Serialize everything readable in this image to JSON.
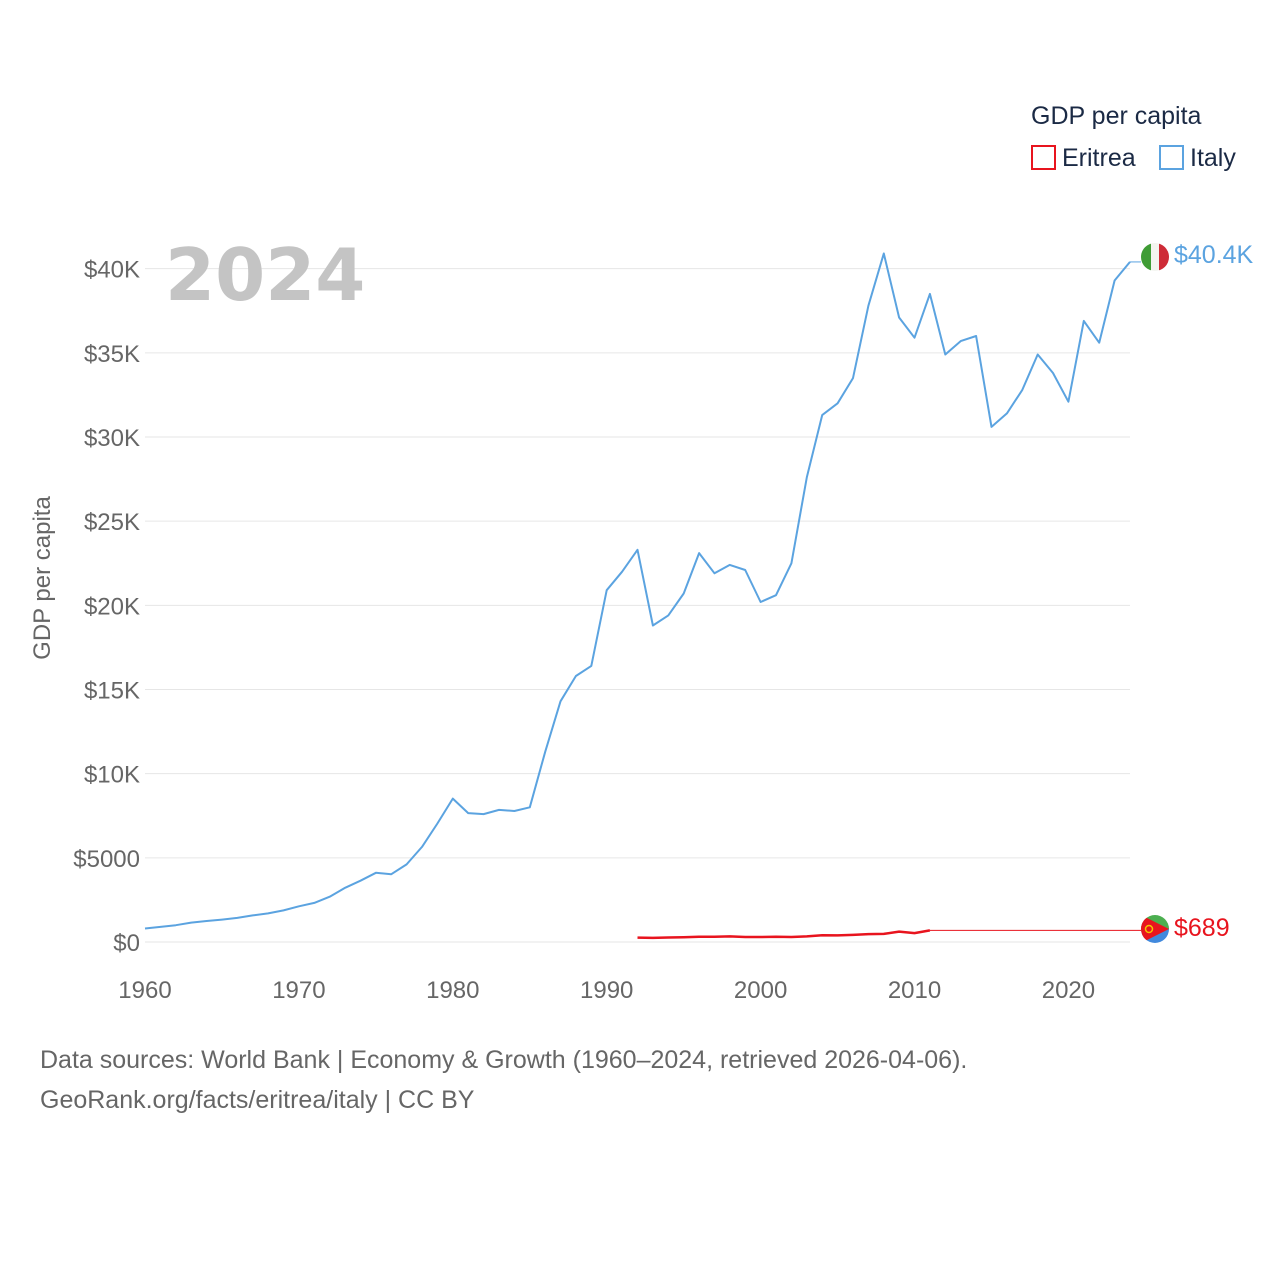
{
  "chart_data": {
    "type": "line",
    "title": "GDP per capita",
    "ylabel": "GDP per capita",
    "xlabel": "",
    "year_label": "2024",
    "xlim": [
      1960,
      2024
    ],
    "ylim": [
      0,
      42000
    ],
    "x_ticks": [
      1960,
      1970,
      1980,
      1990,
      2000,
      2010,
      2020
    ],
    "x_tick_labels": [
      "1960",
      "1970",
      "1980",
      "1990",
      "2000",
      "2010",
      "2020"
    ],
    "y_ticks": [
      0,
      5000,
      10000,
      15000,
      20000,
      25000,
      30000,
      35000,
      40000
    ],
    "y_tick_labels": [
      "$0",
      "$5000",
      "$10K",
      "$15K",
      "$20K",
      "$25K",
      "$30K",
      "$35K",
      "$40K"
    ],
    "grid": true,
    "legend": {
      "title": "GDP per capita",
      "position": "top-right"
    },
    "series": [
      {
        "name": "Eritrea",
        "color": "#e8141e",
        "end_label": "$689",
        "x": [
          1992,
          1993,
          1994,
          1995,
          1996,
          1997,
          1998,
          1999,
          2000,
          2001,
          2002,
          2003,
          2004,
          2005,
          2006,
          2007,
          2008,
          2009,
          2010,
          2011
        ],
        "values": [
          260,
          245,
          270,
          280,
          310,
          310,
          330,
          300,
          300,
          310,
          295,
          330,
          400,
          390,
          420,
          470,
          480,
          620,
          530,
          689
        ]
      },
      {
        "name": "Italy",
        "color": "#5ba3e0",
        "end_label": "$40.4K",
        "x": [
          1960,
          1961,
          1962,
          1963,
          1964,
          1965,
          1966,
          1967,
          1968,
          1969,
          1970,
          1971,
          1972,
          1973,
          1974,
          1975,
          1976,
          1977,
          1978,
          1979,
          1980,
          1981,
          1982,
          1983,
          1984,
          1985,
          1986,
          1987,
          1988,
          1989,
          1990,
          1991,
          1992,
          1993,
          1994,
          1995,
          1996,
          1997,
          1998,
          1999,
          2000,
          2001,
          2002,
          2003,
          2004,
          2005,
          2006,
          2007,
          2008,
          2009,
          2010,
          2011,
          2012,
          2013,
          2014,
          2015,
          2016,
          2017,
          2018,
          2019,
          2020,
          2021,
          2022,
          2023,
          2024
        ],
        "values": [
          800,
          900,
          1000,
          1150,
          1250,
          1330,
          1430,
          1580,
          1700,
          1880,
          2120,
          2320,
          2690,
          3220,
          3640,
          4110,
          4030,
          4610,
          5650,
          7040,
          8520,
          7660,
          7600,
          7850,
          7780,
          8000,
          11300,
          14300,
          15800,
          16400,
          20900,
          22000,
          23300,
          18800,
          19400,
          20700,
          23100,
          21900,
          22400,
          22100,
          20200,
          20600,
          22500,
          27600,
          31300,
          32000,
          33500,
          37800,
          40900,
          37100,
          35900,
          38500,
          34900,
          35700,
          36000,
          30600,
          31400,
          32800,
          34900,
          33800,
          32100,
          36900,
          35600,
          39300,
          40400
        ]
      }
    ]
  },
  "source": {
    "line1": "Data sources: World Bank | Economy & Growth (1960–2024, retrieved 2026-04-06).",
    "line2": "GeoRank.org/facts/eritrea/italy | CC BY"
  }
}
